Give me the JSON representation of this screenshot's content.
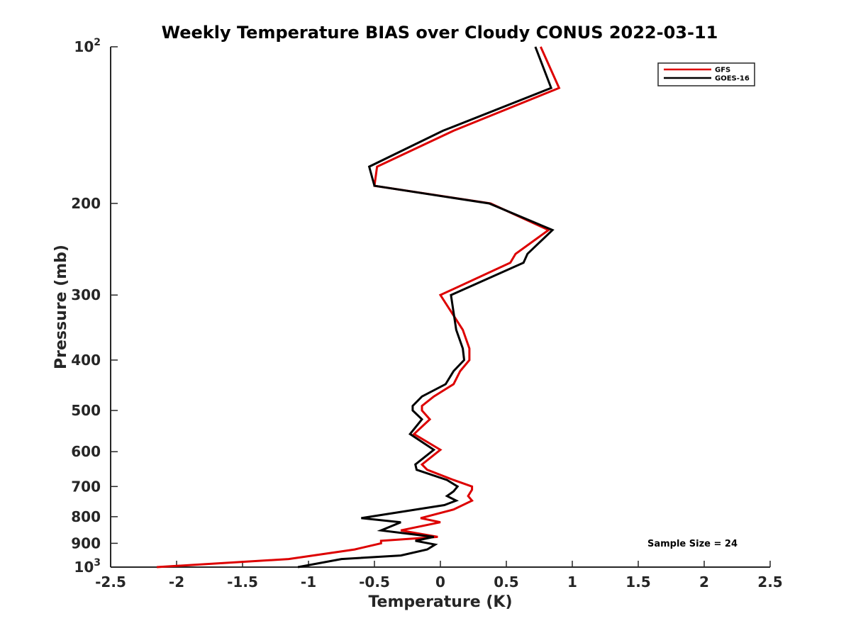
{
  "chart_data": {
    "type": "line",
    "title": "Weekly Temperature BIAS over Cloudy CONUS 2022-03-11",
    "xlabel": "Temperature (K)",
    "ylabel": "Pressure (mb)",
    "xlim": [
      -2.5,
      2.5
    ],
    "ylim": [
      100,
      1000
    ],
    "y_scale": "log",
    "y_reversed": true,
    "grid": false,
    "x_ticks": [
      -2.5,
      -2,
      -1.5,
      -1,
      -0.5,
      0,
      0.5,
      1,
      1.5,
      2,
      2.5
    ],
    "x_tick_labels": [
      "-2.5",
      "-2",
      "-1.5",
      "-1",
      "-0.5",
      "0",
      "0.5",
      "1",
      "1.5",
      "2",
      "2.5"
    ],
    "y_ticks": [
      {
        "value": 100,
        "base": "10",
        "exp": "2"
      },
      {
        "value": 200,
        "label": "200"
      },
      {
        "value": 300,
        "label": "300"
      },
      {
        "value": 400,
        "label": "400"
      },
      {
        "value": 500,
        "label": "500"
      },
      {
        "value": 600,
        "label": "600"
      },
      {
        "value": 700,
        "label": "700"
      },
      {
        "value": 800,
        "label": "800"
      },
      {
        "value": 900,
        "label": "900"
      },
      {
        "value": 1000,
        "base": "10",
        "exp": "3"
      }
    ],
    "legend_position": "top-right",
    "annotation": "Sample Size = 24",
    "series": [
      {
        "name": "GFS",
        "color": "#dd0000",
        "points": [
          [
            0.76,
            100
          ],
          [
            0.9,
            120
          ],
          [
            0.1,
            145
          ],
          [
            -0.48,
            170
          ],
          [
            -0.5,
            185
          ],
          [
            0.38,
            200
          ],
          [
            0.82,
            225
          ],
          [
            0.57,
            250
          ],
          [
            0.53,
            260
          ],
          [
            0.0,
            300
          ],
          [
            0.17,
            350
          ],
          [
            0.22,
            380
          ],
          [
            0.22,
            400
          ],
          [
            0.15,
            420
          ],
          [
            0.1,
            445
          ],
          [
            -0.05,
            470
          ],
          [
            -0.14,
            490
          ],
          [
            -0.14,
            500
          ],
          [
            -0.08,
            520
          ],
          [
            -0.2,
            555
          ],
          [
            0.0,
            595
          ],
          [
            -0.14,
            635
          ],
          [
            -0.1,
            650
          ],
          [
            0.1,
            680
          ],
          [
            0.24,
            700
          ],
          [
            0.24,
            710
          ],
          [
            0.21,
            730
          ],
          [
            0.24,
            745
          ],
          [
            0.1,
            775
          ],
          [
            -0.15,
            805
          ],
          [
            0.0,
            820
          ],
          [
            -0.3,
            850
          ],
          [
            -0.02,
            875
          ],
          [
            -0.45,
            890
          ],
          [
            -0.45,
            900
          ],
          [
            -0.65,
            925
          ],
          [
            -1.15,
            965
          ],
          [
            -2.15,
            1000
          ]
        ]
      },
      {
        "name": "GOES-16",
        "color": "#000000",
        "points": [
          [
            0.72,
            100
          ],
          [
            0.84,
            120
          ],
          [
            0.02,
            145
          ],
          [
            -0.54,
            170
          ],
          [
            -0.5,
            185
          ],
          [
            0.37,
            200
          ],
          [
            0.85,
            225
          ],
          [
            0.66,
            250
          ],
          [
            0.63,
            260
          ],
          [
            0.08,
            300
          ],
          [
            0.12,
            350
          ],
          [
            0.17,
            380
          ],
          [
            0.18,
            400
          ],
          [
            0.1,
            420
          ],
          [
            0.04,
            445
          ],
          [
            -0.14,
            470
          ],
          [
            -0.21,
            490
          ],
          [
            -0.21,
            500
          ],
          [
            -0.14,
            520
          ],
          [
            -0.23,
            555
          ],
          [
            -0.05,
            595
          ],
          [
            -0.19,
            635
          ],
          [
            -0.18,
            650
          ],
          [
            0.05,
            680
          ],
          [
            0.13,
            700
          ],
          [
            0.1,
            715
          ],
          [
            0.05,
            730
          ],
          [
            0.12,
            745
          ],
          [
            0.03,
            760
          ],
          [
            -0.6,
            805
          ],
          [
            -0.3,
            820
          ],
          [
            -0.45,
            850
          ],
          [
            -0.05,
            875
          ],
          [
            -0.19,
            890
          ],
          [
            -0.04,
            905
          ],
          [
            -0.1,
            925
          ],
          [
            -0.3,
            950
          ],
          [
            -0.75,
            965
          ],
          [
            -1.08,
            1000
          ]
        ]
      }
    ]
  }
}
